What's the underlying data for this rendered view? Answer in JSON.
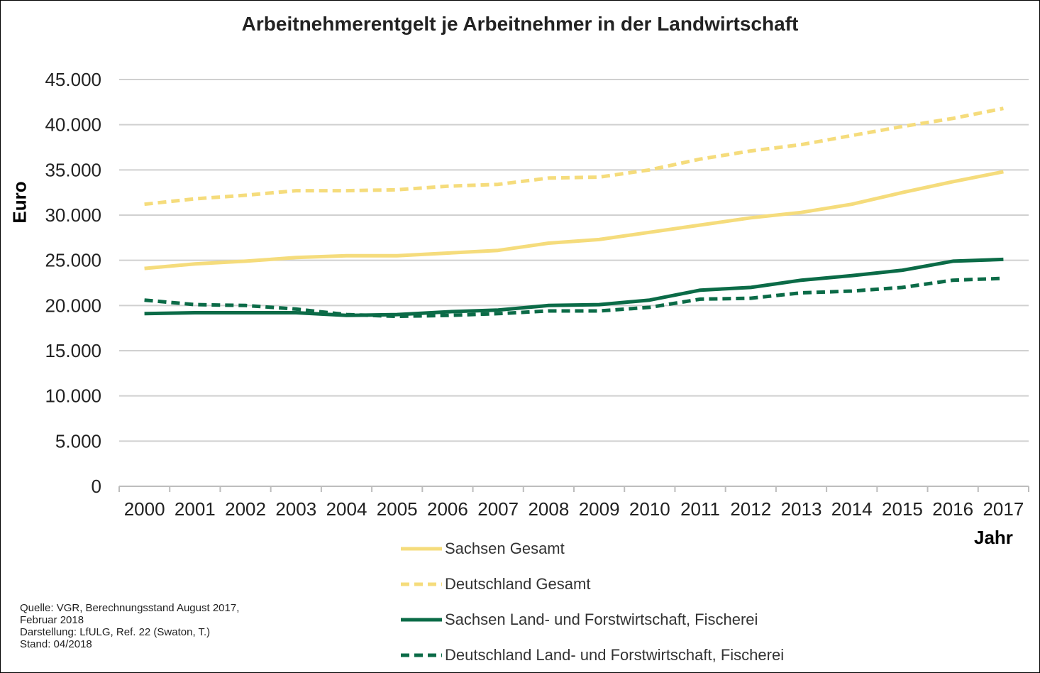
{
  "chart_data": {
    "type": "line",
    "title": "Arbeitnehmerentgelt je Arbeitnehmer in der Landwirtschaft",
    "xlabel": "Jahr",
    "ylabel": "Euro",
    "ylim": [
      0,
      45000
    ],
    "yticks": [
      0,
      5000,
      10000,
      15000,
      20000,
      25000,
      30000,
      35000,
      40000,
      45000
    ],
    "ytick_labels": [
      "0",
      "5.000",
      "10.000",
      "15.000",
      "20.000",
      "25.000",
      "30.000",
      "35.000",
      "40.000",
      "45.000"
    ],
    "categories": [
      "2000",
      "2001",
      "2002",
      "2003",
      "2004",
      "2005",
      "2006",
      "2007",
      "2008",
      "2009",
      "2010",
      "2011",
      "2012",
      "2013",
      "2014",
      "2015",
      "2016",
      "2017"
    ],
    "grid": true,
    "legend_position": "bottom",
    "series": [
      {
        "name": "Sachsen Gesamt",
        "color": "#F5DC7C",
        "style": "solid",
        "values": [
          24100,
          24600,
          24900,
          25300,
          25500,
          25500,
          25800,
          26100,
          26900,
          27300,
          28100,
          28900,
          29700,
          30300,
          31200,
          32500,
          33700,
          34800
        ]
      },
      {
        "name": "Deutschland Gesamt",
        "color": "#F5DC7C",
        "style": "dashed",
        "values": [
          31200,
          31800,
          32200,
          32700,
          32700,
          32800,
          33200,
          33400,
          34100,
          34200,
          35000,
          36200,
          37100,
          37800,
          38800,
          39800,
          40700,
          41800
        ]
      },
      {
        "name": "Sachsen Land- und Forstwirtschaft, Fischerei",
        "color": "#0B6B47",
        "style": "solid",
        "values": [
          19100,
          19200,
          19200,
          19200,
          18900,
          19000,
          19300,
          19500,
          20000,
          20100,
          20600,
          21700,
          22000,
          22800,
          23300,
          23900,
          24900,
          25100
        ]
      },
      {
        "name": "Deutschland Land- und Forstwirtschaft, Fischerei",
        "color": "#0B6B47",
        "style": "dashed",
        "values": [
          20600,
          20100,
          20000,
          19600,
          19000,
          18800,
          18900,
          19100,
          19400,
          19400,
          19800,
          20700,
          20800,
          21400,
          21600,
          22000,
          22800,
          23000
        ]
      }
    ]
  },
  "source": {
    "line1": "Quelle: VGR, Berechnungsstand  August 2017,",
    "line2": "Februar 2018",
    "line3": "Darstellung:  LfULG, Ref. 22 (Swaton, T.)",
    "line4": "Stand: 04/2018"
  }
}
